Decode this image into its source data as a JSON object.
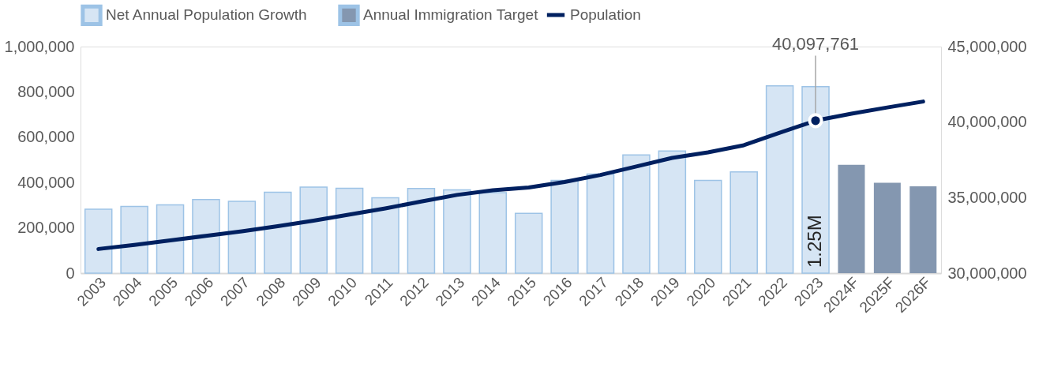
{
  "chart_data": {
    "type": "bar",
    "categories": [
      "2003",
      "2004",
      "2005",
      "2006",
      "2007",
      "2008",
      "2009",
      "2010",
      "2011",
      "2012",
      "2013",
      "2014",
      "2015",
      "2016",
      "2017",
      "2018",
      "2019",
      "2020",
      "2021",
      "2022",
      "2023",
      "2024F",
      "2025F",
      "2026F"
    ],
    "series": [
      {
        "name": "Net Annual Population Growth",
        "color": "#d6e5f4",
        "values": [
          282000,
          294000,
          301000,
          325000,
          317000,
          357000,
          380000,
          375000,
          333000,
          374000,
          368000,
          355000,
          264000,
          409000,
          437000,
          522000,
          539000,
          409000,
          447000,
          827000,
          823000,
          null,
          null,
          null
        ]
      },
      {
        "name": "Annual Immigration Target",
        "color": "#8497b0",
        "values": [
          null,
          null,
          null,
          null,
          null,
          null,
          null,
          null,
          null,
          null,
          null,
          null,
          null,
          null,
          null,
          null,
          null,
          null,
          null,
          null,
          null,
          478000,
          399000,
          383000
        ]
      },
      {
        "name": "Population",
        "type": "line",
        "axis": "y2",
        "color": "#002060",
        "values": [
          31600000,
          31870000,
          32170000,
          32470000,
          32770000,
          33110000,
          33480000,
          33880000,
          34290000,
          34740000,
          35180000,
          35490000,
          35670000,
          36040000,
          36500000,
          37060000,
          37630000,
          38000000,
          38470000,
          39300000,
          40097761,
          40560000,
          40970000,
          41360000
        ],
        "value_labels": [
          null,
          null,
          null,
          null,
          null,
          null,
          null,
          null,
          null,
          null,
          null,
          null,
          null,
          null,
          null,
          null,
          null,
          null,
          null,
          null,
          "40,097,761",
          null,
          null,
          null
        ]
      }
    ],
    "ylim": [
      0,
      1000000
    ],
    "yticks": [
      0,
      {
        "value": 200000,
        "label": "200,000"
      },
      {
        "value": 400000,
        "label": "400,000"
      },
      {
        "value": 600000,
        "label": "600,000"
      },
      {
        "value": 800000,
        "label": "800,000"
      },
      {
        "value": 1000000,
        "label": "1,000,000"
      }
    ],
    "y2lim": [
      30000000,
      45000000
    ],
    "y2ticks": [
      {
        "value": 30000000,
        "label": "30,000,000"
      },
      {
        "value": 35000000,
        "label": "35,000,000"
      },
      {
        "value": 40000000,
        "label": "40,000,000"
      },
      {
        "value": 45000000,
        "label": "45,000,000"
      }
    ],
    "annotations": [
      "1.25M"
    ],
    "legend": "top",
    "grid": false
  }
}
